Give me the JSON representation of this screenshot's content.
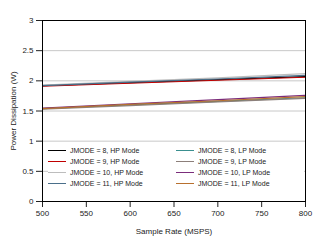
{
  "chart_data": {
    "type": "line",
    "x_label": "Sample Rate (MSPS)",
    "y_label": "Power Dissipation (W)",
    "x": [
      500,
      600,
      700,
      800
    ],
    "xlim": [
      500,
      800
    ],
    "xticks": [
      500,
      550,
      600,
      650,
      700,
      750,
      800
    ],
    "ylim": [
      0,
      3
    ],
    "yticks": [
      0,
      0.5,
      1,
      1.5,
      2,
      2.5,
      3
    ],
    "grid": true,
    "legend": "bottom",
    "series": [
      {
        "name": "JMODE = 8, HP Mode",
        "color": "#000000",
        "values": [
          1.92,
          1.97,
          2.02,
          2.07
        ]
      },
      {
        "name": "JMODE = 8, LP Mode",
        "color": "#3a8f8f",
        "values": [
          1.54,
          1.6,
          1.66,
          1.72
        ]
      },
      {
        "name": "JMODE = 9, HP Mode",
        "color": "#c00000",
        "values": [
          1.91,
          1.96,
          2.01,
          2.06
        ]
      },
      {
        "name": "JMODE = 9, LP Mode",
        "color": "#8c7f7a",
        "values": [
          1.53,
          1.59,
          1.65,
          1.71
        ]
      },
      {
        "name": "JMODE = 10, HP Mode",
        "color": "#bdbdbd",
        "values": [
          1.93,
          1.99,
          2.05,
          2.12
        ]
      },
      {
        "name": "JMODE = 10, LP Mode",
        "color": "#7b2d7b",
        "values": [
          1.55,
          1.62,
          1.69,
          1.76
        ]
      },
      {
        "name": "JMODE = 11, HP Mode",
        "color": "#4a6f8a",
        "values": [
          1.92,
          1.98,
          2.03,
          2.09
        ]
      },
      {
        "name": "JMODE = 11, LP Mode",
        "color": "#b8702e",
        "values": [
          1.54,
          1.61,
          1.67,
          1.74
        ]
      }
    ]
  }
}
